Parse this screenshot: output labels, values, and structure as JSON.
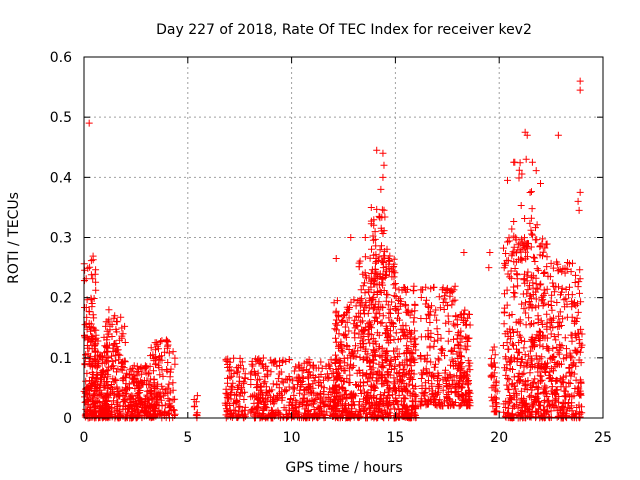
{
  "chart_data": {
    "type": "scatter",
    "title": "Day 227 of 2018, Rate Of TEC Index for receiver kev2",
    "xlabel": "GPS time / hours",
    "ylabel": "ROTI / TECUs",
    "xlim": [
      0,
      25
    ],
    "ylim": [
      0,
      0.6
    ],
    "xticks": [
      0,
      5,
      10,
      15,
      20,
      25
    ],
    "yticks": [
      0,
      0.1,
      0.2,
      0.3,
      0.4,
      0.5,
      0.6
    ],
    "xtick_labels": [
      "0",
      "5",
      "10",
      "15",
      "20",
      "25"
    ],
    "ytick_labels": [
      "0",
      "0.1",
      "0.2",
      "0.3",
      "0.4",
      "0.5",
      "0.6"
    ],
    "grid": true,
    "marker": "+",
    "color": "#ff0000",
    "series": [
      {
        "name": "ROTI",
        "clusters": [
          {
            "x_range": [
              0.0,
              1.2
            ],
            "y_range": [
              0.0,
              0.14
            ],
            "count": 260
          },
          {
            "x_range": [
              0.0,
              0.6
            ],
            "y_range": [
              0.12,
              0.27
            ],
            "count": 50
          },
          {
            "x_range": [
              1.0,
              2.0
            ],
            "y_range": [
              0.0,
              0.17
            ],
            "count": 150
          },
          {
            "x_range": [
              2.0,
              3.5
            ],
            "y_range": [
              0.0,
              0.09
            ],
            "count": 200
          },
          {
            "x_range": [
              3.2,
              4.4
            ],
            "y_range": [
              0.0,
              0.13
            ],
            "count": 120
          },
          {
            "x_range": [
              5.3,
              5.5
            ],
            "y_range": [
              0.0,
              0.04
            ],
            "count": 10
          },
          {
            "x_range": [
              6.8,
              7.8
            ],
            "y_range": [
              0.0,
              0.1
            ],
            "count": 110
          },
          {
            "x_range": [
              8.0,
              11.0
            ],
            "y_range": [
              0.0,
              0.1
            ],
            "count": 320
          },
          {
            "x_range": [
              11.0,
              12.2
            ],
            "y_range": [
              0.0,
              0.1
            ],
            "count": 120
          },
          {
            "x_range": [
              12.0,
              13.2
            ],
            "y_range": [
              0.0,
              0.2
            ],
            "count": 220
          },
          {
            "x_range": [
              13.2,
              15.0
            ],
            "y_range": [
              0.0,
              0.27
            ],
            "count": 420
          },
          {
            "x_range": [
              13.8,
              14.6
            ],
            "y_range": [
              0.22,
              0.35
            ],
            "count": 50
          },
          {
            "x_range": [
              15.0,
              16.0
            ],
            "y_range": [
              0.0,
              0.22
            ],
            "count": 220
          },
          {
            "x_range": [
              16.2,
              18.0
            ],
            "y_range": [
              0.02,
              0.22
            ],
            "count": 230
          },
          {
            "x_range": [
              18.0,
              18.6
            ],
            "y_range": [
              0.02,
              0.18
            ],
            "count": 120
          },
          {
            "x_range": [
              19.6,
              19.9
            ],
            "y_range": [
              0.01,
              0.12
            ],
            "count": 40
          },
          {
            "x_range": [
              20.2,
              22.5
            ],
            "y_range": [
              0.0,
              0.3
            ],
            "count": 460
          },
          {
            "x_range": [
              20.5,
              22.0
            ],
            "y_range": [
              0.28,
              0.43
            ],
            "count": 35
          },
          {
            "x_range": [
              22.5,
              24.0
            ],
            "y_range": [
              0.0,
              0.26
            ],
            "count": 260
          }
        ],
        "points": [
          {
            "x": 0.25,
            "y": 0.49
          },
          {
            "x": 14.1,
            "y": 0.445
          },
          {
            "x": 14.4,
            "y": 0.44
          },
          {
            "x": 14.45,
            "y": 0.42
          },
          {
            "x": 14.4,
            "y": 0.4
          },
          {
            "x": 14.3,
            "y": 0.38
          },
          {
            "x": 21.25,
            "y": 0.475
          },
          {
            "x": 21.35,
            "y": 0.47
          },
          {
            "x": 22.85,
            "y": 0.47
          },
          {
            "x": 23.9,
            "y": 0.56
          },
          {
            "x": 23.9,
            "y": 0.545
          },
          {
            "x": 20.4,
            "y": 0.395
          },
          {
            "x": 20.7,
            "y": 0.425
          },
          {
            "x": 21.3,
            "y": 0.43
          },
          {
            "x": 21.6,
            "y": 0.425
          },
          {
            "x": 23.9,
            "y": 0.375
          },
          {
            "x": 23.8,
            "y": 0.36
          },
          {
            "x": 23.85,
            "y": 0.345
          },
          {
            "x": 19.55,
            "y": 0.275
          },
          {
            "x": 19.5,
            "y": 0.25
          },
          {
            "x": 12.85,
            "y": 0.3
          },
          {
            "x": 13.55,
            "y": 0.3
          },
          {
            "x": 12.15,
            "y": 0.265
          },
          {
            "x": 18.3,
            "y": 0.275
          },
          {
            "x": 3.5,
            "y": 0.125
          },
          {
            "x": 0.2,
            "y": 0.0
          },
          {
            "x": 1.2,
            "y": 0.18
          },
          {
            "x": 1.6,
            "y": 0.16
          }
        ]
      }
    ]
  }
}
